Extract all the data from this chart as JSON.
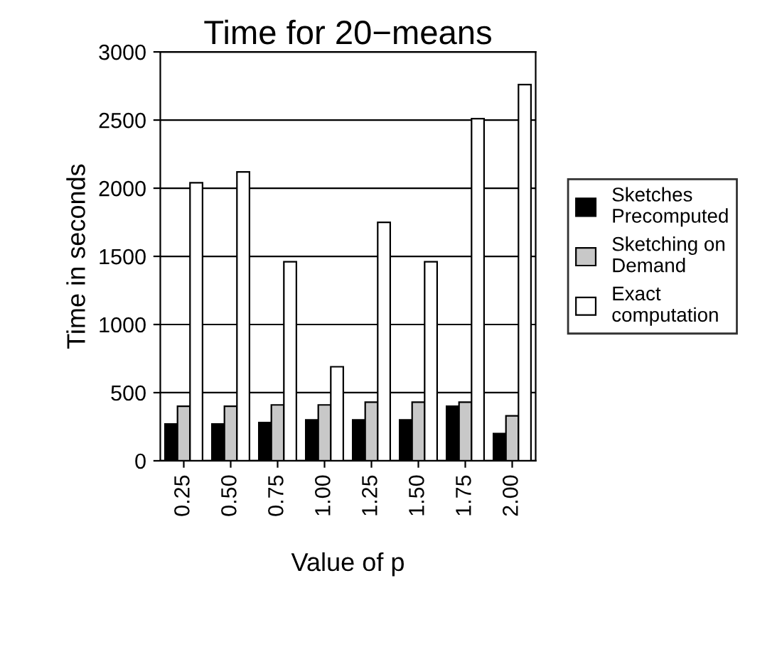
{
  "chart_data": {
    "type": "bar",
    "title": "Time for 20−means",
    "xlabel": "Value of p",
    "ylabel": "Time in seconds",
    "categories": [
      "0.25",
      "0.50",
      "0.75",
      "1.00",
      "1.25",
      "1.50",
      "1.75",
      "2.00"
    ],
    "series": [
      {
        "name": "Sketches\nPrecomputed",
        "color": "#000000",
        "values": [
          270,
          270,
          280,
          300,
          300,
          300,
          400,
          200
        ]
      },
      {
        "name": "Sketching on\nDemand",
        "color": "#c8c8c8",
        "values": [
          400,
          400,
          410,
          410,
          430,
          430,
          430,
          330
        ]
      },
      {
        "name": "Exact\ncomputation",
        "color": "#ffffff",
        "values": [
          2040,
          2120,
          1460,
          690,
          1750,
          1460,
          2510,
          2760
        ]
      }
    ],
    "ylim": [
      0,
      3000
    ],
    "yticks": [
      0,
      500,
      1000,
      1500,
      2000,
      2500,
      3000
    ],
    "grid": "y",
    "legend": "right"
  }
}
